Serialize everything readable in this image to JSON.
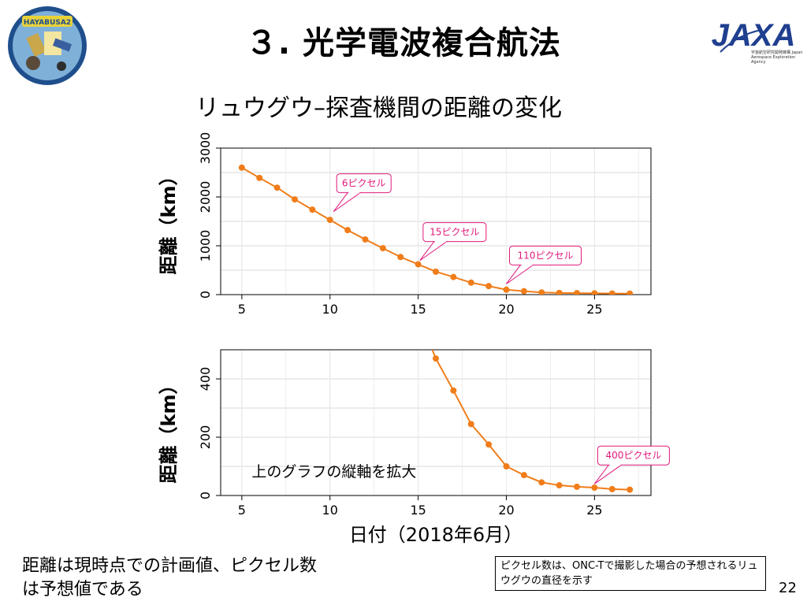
{
  "slide": {
    "title": "３. 光学電波複合航法",
    "subtitle": "リュウグウ–探査機間の距離の変化",
    "page_number": "22",
    "note_left": "距離は現時点での計画値、ピクセル数は予想値である",
    "note_right": "ピクセル数は、ONC-Tで撮影した場合の予想されるリュウグウの直径を示す",
    "jaxa_logo_text": "JAXA",
    "jaxa_caption": "宇宙航空研究開発機構 Japan Aerospace Exploration Agency",
    "mission_logo_text": "HAYABUSA2"
  },
  "chart_data": [
    {
      "type": "line",
      "ylabel": "距離（km）",
      "xlabel": "",
      "xlim": [
        3.8,
        28.2
      ],
      "ylim": [
        0,
        3000
      ],
      "x_ticks": [
        5,
        10,
        15,
        20,
        25
      ],
      "y_ticks": [
        0,
        1000,
        2000,
        3000
      ],
      "grid": true,
      "color": "#f07d1a",
      "series": [
        {
          "x": [
            5,
            6,
            7,
            8,
            9,
            10,
            11,
            12,
            13,
            14,
            15,
            16,
            17,
            18,
            19,
            20,
            21,
            22,
            23,
            24,
            25,
            26,
            27
          ],
          "values": [
            2600,
            2390,
            2190,
            1950,
            1740,
            1530,
            1320,
            1130,
            950,
            770,
            620,
            470,
            360,
            245,
            175,
            100,
            70,
            45,
            35,
            30,
            27,
            22,
            20
          ]
        }
      ],
      "annotations": [
        {
          "text": "6ピクセル",
          "x": 10.2,
          "y": 1700
        },
        {
          "text": "15ピクセル",
          "x": 15.1,
          "y": 700
        },
        {
          "text": "110ピクセル",
          "x": 20.0,
          "y": 220
        }
      ]
    },
    {
      "type": "line",
      "ylabel": "距離（km）",
      "xlabel": "日付（2018年6月）",
      "xlim": [
        3.8,
        28.2
      ],
      "ylim": [
        0,
        500
      ],
      "x_ticks": [
        5,
        10,
        15,
        20,
        25
      ],
      "y_ticks": [
        0,
        200,
        400
      ],
      "grid": true,
      "color": "#f07d1a",
      "series": [
        {
          "x": [
            15.8,
            16,
            17,
            18,
            19,
            20,
            21,
            22,
            23,
            24,
            25,
            26,
            27
          ],
          "values": [
            500,
            470,
            360,
            245,
            175,
            100,
            70,
            45,
            35,
            30,
            27,
            22,
            20
          ]
        }
      ],
      "annotations": [
        {
          "text": "上のグラフの縦軸を拡大",
          "x": 5.2,
          "y": 65,
          "plain": true
        },
        {
          "text": "400ピクセル",
          "x": 25.0,
          "y": 40
        }
      ]
    }
  ]
}
